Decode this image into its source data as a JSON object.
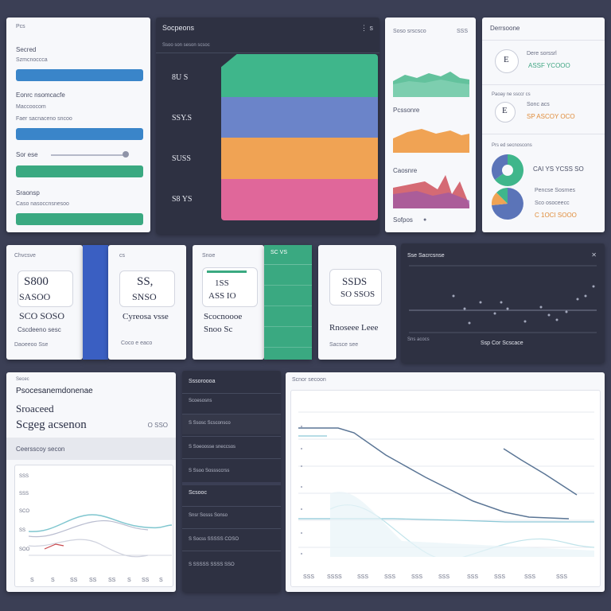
{
  "form_panel": {
    "header": "Pcs",
    "section1_title": "Secred",
    "section1_sub": "Szmcnoccca",
    "section2_title": "Eonrc nsomcacfe",
    "section2_sub": "Maccoocom",
    "section2_note": "Faer sacnaceno sncoo",
    "slider_label": "Sor ese",
    "section3_title": "Sraonsp",
    "section3_note": "Caso nasoccnsnesoo"
  },
  "stack_chart": {
    "title": "Socpeons",
    "menu": "⋮ s",
    "subtitle": "Ssoo son seson scsoc",
    "rows": [
      {
        "label": "8U  S",
        "color": "#3fb68b"
      },
      {
        "label": "SSY.S",
        "color": "#6b84c9"
      },
      {
        "label": "SUSS",
        "color": "#f0a354"
      },
      {
        "label": "S8 YS",
        "color": "#e0679a"
      }
    ]
  },
  "mini_charts": {
    "header": "Soso srscsco",
    "value": "SSS",
    "items": [
      {
        "label": "",
        "color": "#49b88c"
      },
      {
        "label": "Pcssonre",
        "color": "#f0a354"
      },
      {
        "label": "Caosnre",
        "color": "#b35c8a"
      }
    ],
    "footer": "Sofpos",
    "footer_dot": "●"
  },
  "donut_panel": {
    "title": "Derrsoone",
    "item1_value": "Dere sorssrl",
    "item1_sub": "ASSF YCOOO",
    "item1_icon": "E",
    "item2_caption": "Paoay ne ssccr cs",
    "item2_value": "Sonc acs",
    "item2_sub": "SP ASCOY OCO",
    "item2_icon": "E",
    "item3_caption": "Prs ed secnoscons",
    "item3_value": "CAI YS YCSS SO",
    "item4_value": "Pencse Sosrnes",
    "item4_sub": "Sco osoceecc",
    "item4_sub2": "C 1OCI SOOO"
  },
  "stat_cards": [
    {
      "top": "Chvcsve",
      "big": "S800",
      "value": "SASOO",
      "desc": "SCO SOSO",
      "caption": "Cscdeeno sesc",
      "foot": "Daoeeoo  Sse"
    },
    {
      "top": "cs",
      "big": "SS,",
      "value": "SNSO",
      "desc": "",
      "caption": "Cyreosa vsse",
      "foot": "Coco  e eaco"
    },
    {
      "top": "Snoe",
      "big": "1SS",
      "value": "ASS IO",
      "desc": "",
      "caption": "Scocnoooe",
      "foot": "Snoo  Sc"
    },
    {
      "top": "SC  VS",
      "big": "",
      "value": "",
      "desc": "",
      "caption": "",
      "foot": ""
    },
    {
      "top": "",
      "big": "SSDS",
      "value": "SO SSOS",
      "desc": "",
      "caption": "Rnoseee  Leee",
      "foot": "Sacsce  see"
    }
  ],
  "scatter_panel": {
    "title": "Sse Sacrcsnse",
    "menu": "✕",
    "legend_left": "Sns acocs",
    "legend_right": "Ssp Cor Scscace"
  },
  "profile_panel": {
    "tag": "Secec",
    "name": "Psocesanemdonenae",
    "sub": "Sroaceed",
    "big": "Scgeg acsenon",
    "side": "O SSO",
    "chart_title": "Ceersscoy secon",
    "y_labels": [
      "SSS",
      "SSS",
      "SCO",
      "SS",
      "SOO"
    ],
    "x_labels": [
      "S",
      "S",
      "SS",
      "SS",
      "SS",
      "S",
      "SS",
      "S"
    ]
  },
  "list_panel": {
    "header": "Sssoroooa",
    "rows1": [
      "Scoesosns",
      "S  Ssosc Scsconsco",
      "S  Soeoosse sneccsos",
      "S  Ssoo Sosssccrss"
    ],
    "header2": "Scsooc",
    "rows2": [
      "Snsr Sosss  Sonso",
      "S  Socss  SSSSS COSO",
      "S  SSSSS SSSS SSO"
    ]
  },
  "line_panel": {
    "title": "Scnor secoon",
    "x_labels": [
      "SSS",
      "SSSS",
      "SSS",
      "SSS",
      "SSS",
      "SSS",
      "SSS",
      "SSS",
      "SSS",
      "SSS"
    ]
  }
}
